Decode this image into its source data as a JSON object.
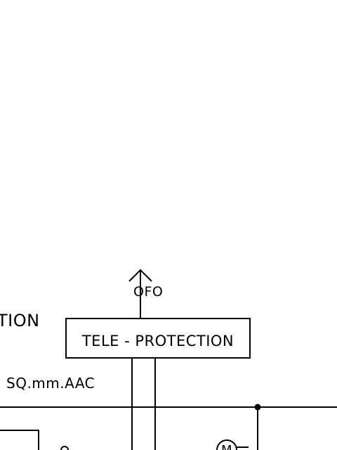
{
  "labels": {
    "section_fragment": "TION",
    "cable_note": "SQ.mm.AAC",
    "ofc_label": "OFO",
    "tele_protection": "TELE - PROTECTION",
    "motor_symbol": "M"
  },
  "colors": {
    "line": "#000000",
    "background": "#ffffff"
  }
}
